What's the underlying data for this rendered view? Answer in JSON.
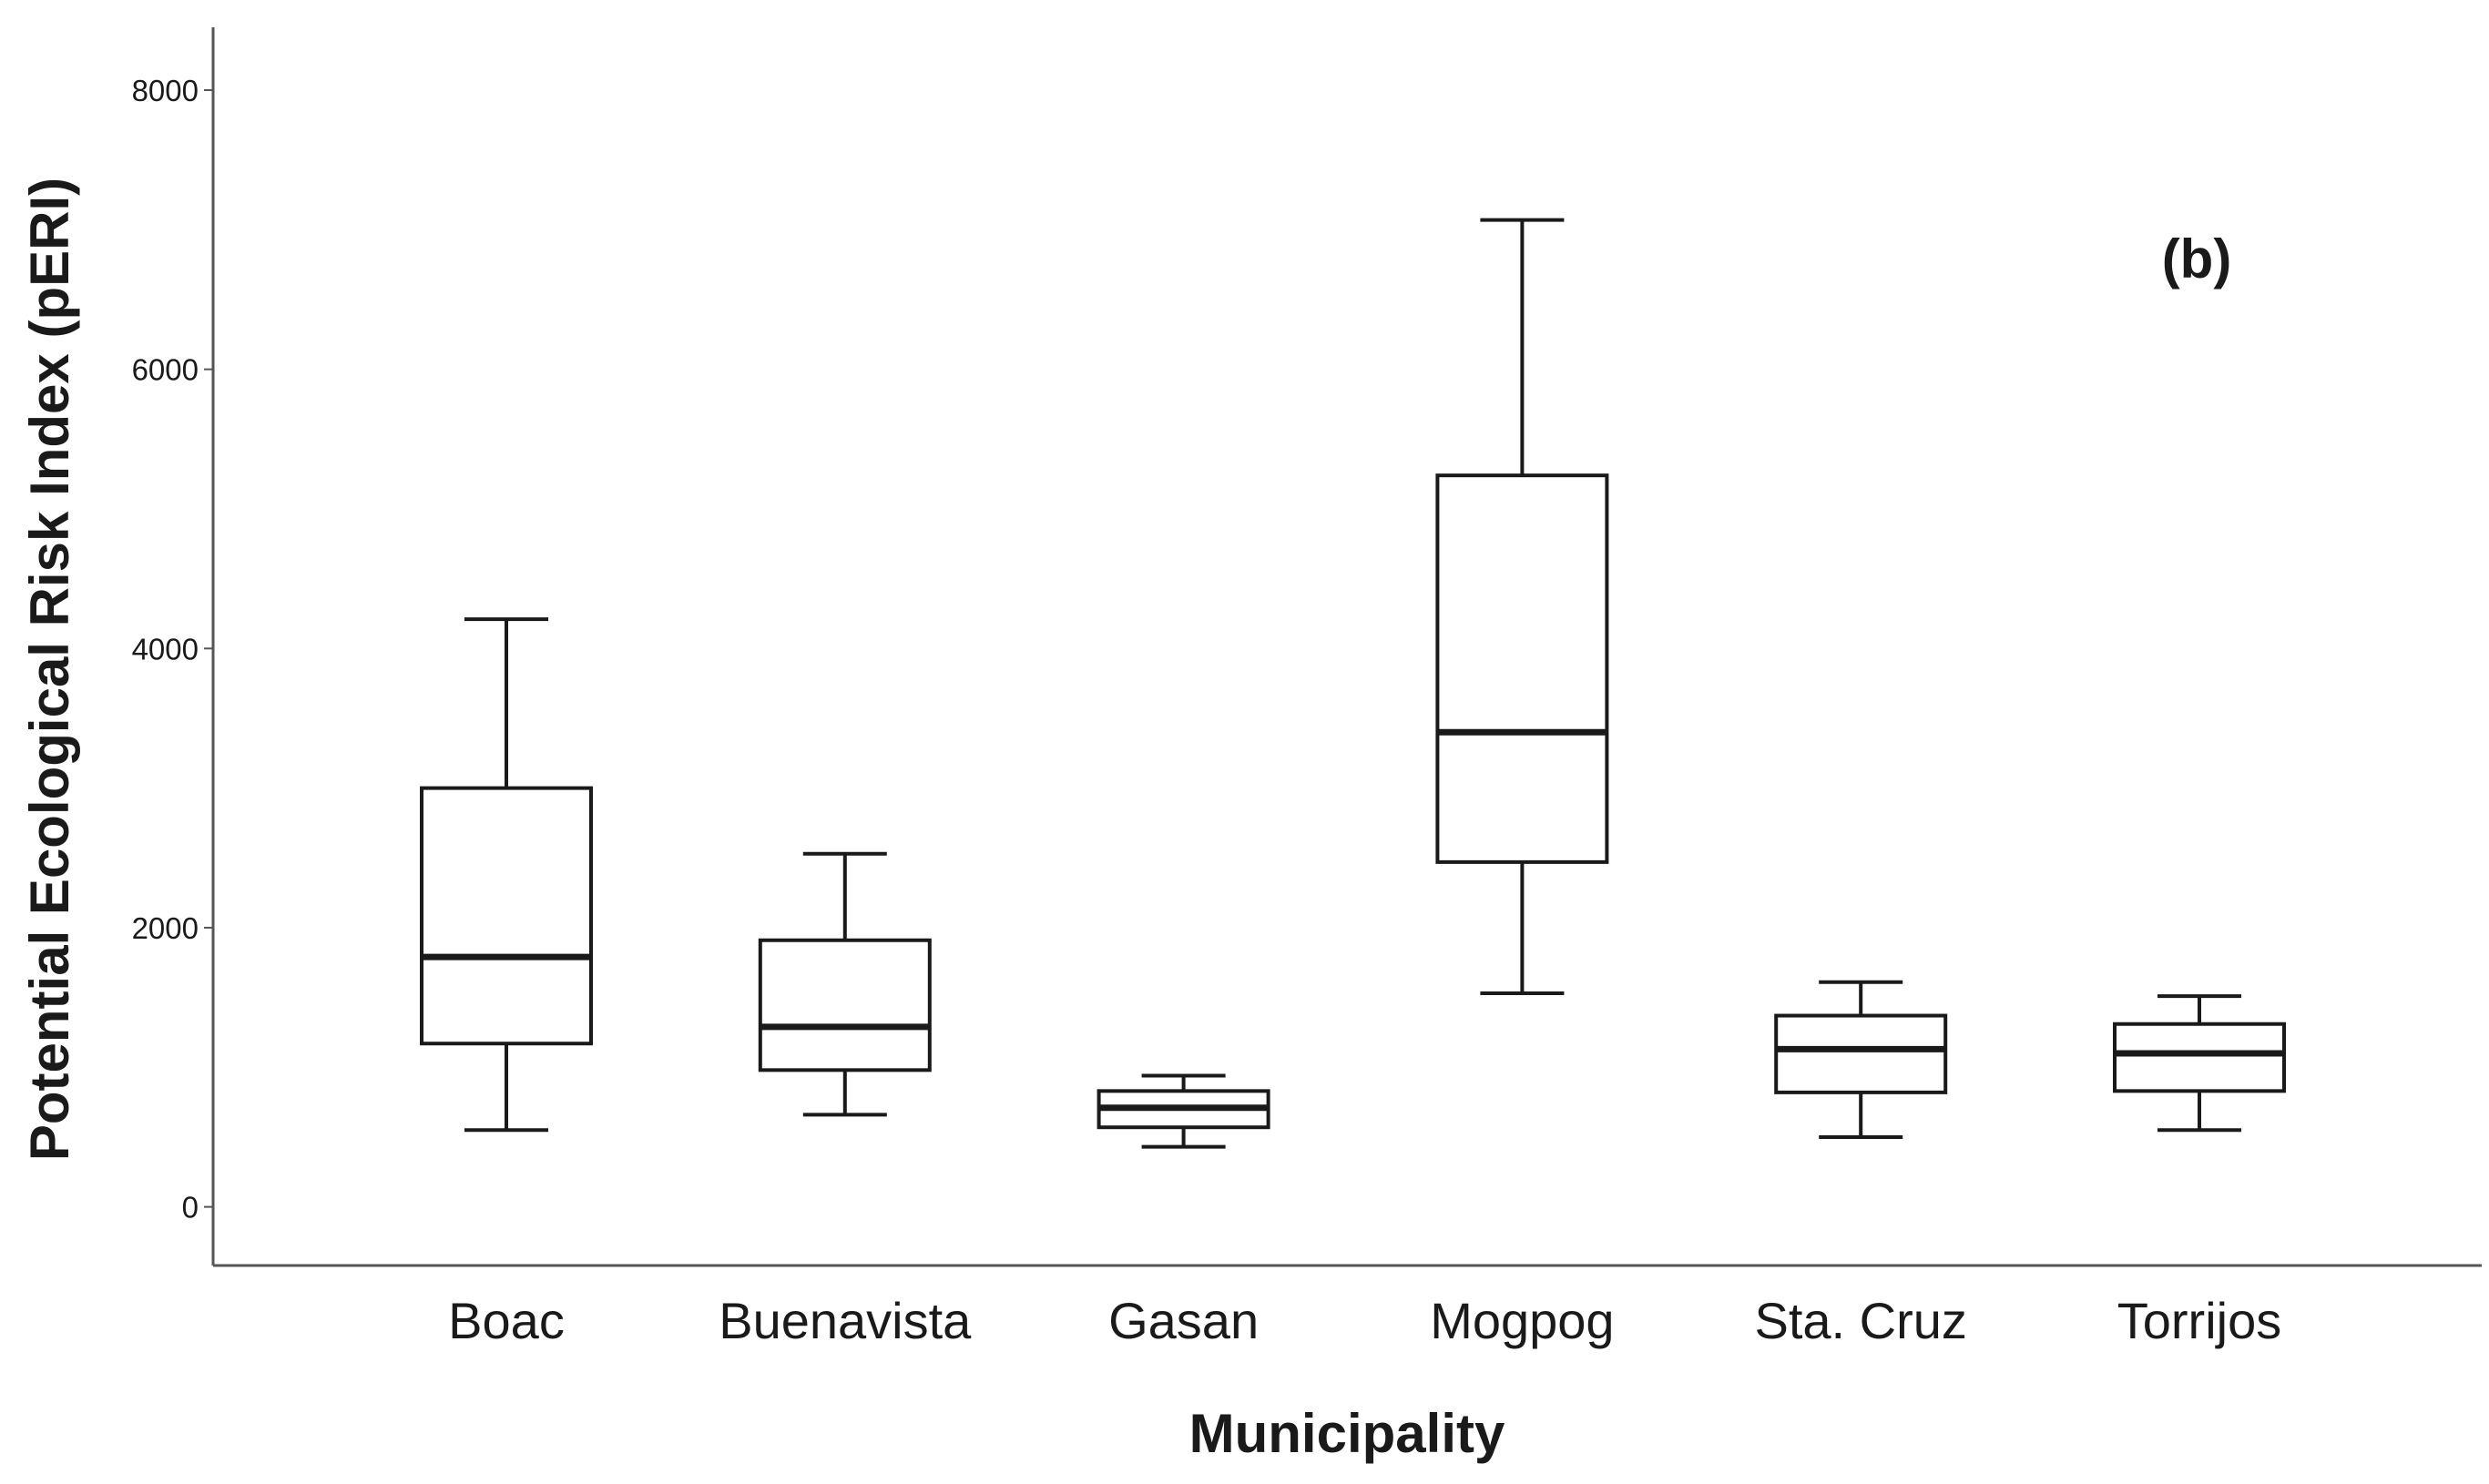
{
  "chart_data": {
    "type": "box",
    "title": "",
    "panel_label": "(b)",
    "xlabel": "Municipality",
    "ylabel": "Potential Ecological Risk Index (pERI)",
    "ylim": [
      -420,
      8450
    ],
    "yticks": [
      0,
      2000,
      4000,
      6000,
      8000
    ],
    "categories": [
      "Boac",
      "Buenavista",
      "Gasan",
      "Mogpog",
      "Sta. Cruz",
      "Torrijos"
    ],
    "series": [
      {
        "name": "Boac",
        "min": 550,
        "q1": 1170,
        "median": 1790,
        "q3": 3000,
        "max": 4210
      },
      {
        "name": "Buenavista",
        "min": 660,
        "q1": 980,
        "median": 1290,
        "q3": 1910,
        "max": 2530
      },
      {
        "name": "Gasan",
        "min": 430,
        "q1": 570,
        "median": 710,
        "q3": 830,
        "max": 940
      },
      {
        "name": "Mogpog",
        "min": 1530,
        "q1": 2470,
        "median": 3400,
        "q3": 5240,
        "max": 7070
      },
      {
        "name": "Sta. Cruz",
        "min": 500,
        "q1": 820,
        "median": 1130,
        "q3": 1370,
        "max": 1610
      },
      {
        "name": "Torrijos",
        "min": 550,
        "q1": 830,
        "median": 1100,
        "q3": 1310,
        "max": 1510
      }
    ],
    "colors": {
      "stroke": "#1a1a1a",
      "box_fill": "#ffffff",
      "axis": "#555555"
    }
  }
}
